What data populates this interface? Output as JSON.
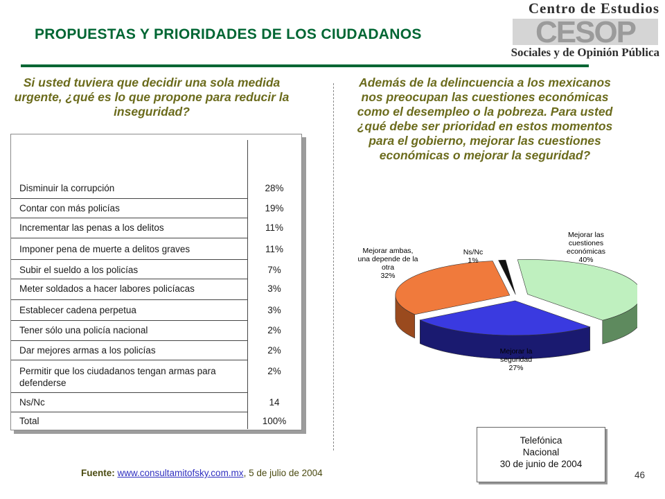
{
  "header": {
    "title": "PROPUESTAS Y PRIORIDADES DE LOS CIUDADANOS",
    "logo_line1": "Centro de Estudios",
    "logo_mark": "CESOP",
    "logo_line2": "Sociales y de Opinión Pública"
  },
  "left": {
    "question": "Si usted tuviera que decidir una sola medida urgente, ¿qué es lo que propone para reducir la inseguridad?",
    "rows": [
      {
        "label": "Disminuir la corrupción",
        "value": "28%"
      },
      {
        "label": "Contar con más policías",
        "value": "19%"
      },
      {
        "label": "Incrementar las penas a los delitos",
        "value": "11%"
      },
      {
        "label": "Imponer pena de muerte a delitos graves",
        "value": "11%"
      },
      {
        "label": "Subir el sueldo a los policías",
        "value": "7%"
      },
      {
        "label": "Meter soldados a hacer labores policíacas",
        "value": "3%"
      },
      {
        "label": "Establecer cadena perpetua",
        "value": "3%"
      },
      {
        "label": "Tener sólo una policía nacional",
        "value": "2%"
      },
      {
        "label": "Dar mejores armas a los policías",
        "value": "2%"
      },
      {
        "label": "Permitir que los ciudadanos tengan armas para defenderse",
        "value": "2%"
      },
      {
        "label": "Ns/Nc",
        "value": "14"
      },
      {
        "label": "Total",
        "value": "100%"
      }
    ]
  },
  "right": {
    "question": "Además de la delincuencia a los mexicanos nos preocupan las cuestiones económicas como el desempleo o la pobreza. Para usted ¿qué debe ser prioridad en estos momentos para el gobierno, mejorar las cuestiones económicas o mejorar la seguridad?"
  },
  "chart_data": {
    "type": "pie",
    "title": "",
    "slices": [
      {
        "label": "Mejorar las cuestiones económicas",
        "value": 40,
        "display": "40%",
        "color": "#bff0bf"
      },
      {
        "label": "Mejorar la seguridad",
        "value": 27,
        "display": "27%",
        "color": "#3a3ae0"
      },
      {
        "label": "Mejorar ambas, una depende de la otra",
        "value": 32,
        "display": "32%",
        "color": "#f07a3c"
      },
      {
        "label": "Ns/Nc",
        "value": 1,
        "display": "1%",
        "color": "#111111"
      }
    ],
    "labels": {
      "econ": [
        "Mejorar las",
        "cuestiones",
        "económicas",
        "40%"
      ],
      "seg": [
        "Mejorar la",
        "seguridad",
        "27%"
      ],
      "ambas": [
        "Mejorar ambas,",
        "una depende de la",
        "otra",
        "32%"
      ],
      "nsnc": [
        "Ns/Nc",
        "1%"
      ]
    }
  },
  "footer": {
    "source_label": "Fuente:",
    "source_link": "www.consultamitofsky.com.mx",
    "source_date": ", 5 de julio de 2004",
    "note_lines": [
      "Telefónica",
      "Nacional",
      "30 de junio de 2004"
    ],
    "page_number": "46"
  }
}
